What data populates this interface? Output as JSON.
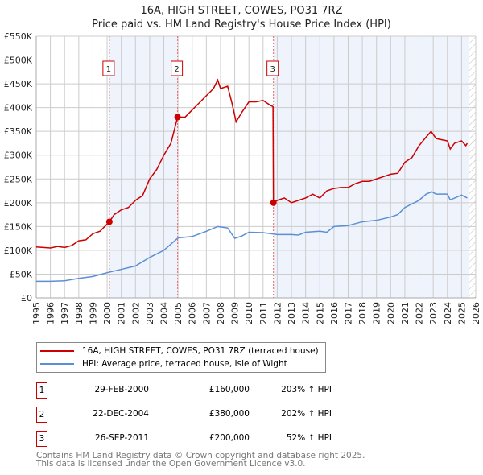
{
  "chart_data": {
    "type": "line",
    "title": "16A, HIGH STREET, COWES, PO31 7RZ",
    "subtitle": "Price paid vs. HM Land Registry's House Price Index (HPI)",
    "xlim": [
      1995,
      2026
    ],
    "ylim": [
      0,
      550000
    ],
    "y_ticks": [
      0,
      50000,
      100000,
      150000,
      200000,
      250000,
      300000,
      350000,
      400000,
      450000,
      500000,
      550000
    ],
    "y_tick_labels": [
      "£0",
      "£50K",
      "£100K",
      "£150K",
      "£200K",
      "£250K",
      "£300K",
      "£350K",
      "£400K",
      "£450K",
      "£500K",
      "£550K"
    ],
    "x_ticks": [
      "1995",
      "1996",
      "1997",
      "1998",
      "1999",
      "2000",
      "2001",
      "2002",
      "2003",
      "2004",
      "2005",
      "2006",
      "2007",
      "2008",
      "2009",
      "2010",
      "2011",
      "2012",
      "2013",
      "2014",
      "2015",
      "2016",
      "2017",
      "2018",
      "2019",
      "2020",
      "2021",
      "2022",
      "2023",
      "2024",
      "2025",
      "2026"
    ],
    "grid": true,
    "data_end": 2025.5,
    "series": [
      {
        "name": "16A, HIGH STREET, COWES, PO31 7RZ (terraced house)",
        "color": "#cc0000",
        "x": [
          1995,
          1996,
          1996.5,
          1997,
          1997.5,
          1998,
          1998.5,
          1999,
          1999.5,
          2000.16,
          2000.5,
          2001,
          2001.5,
          2002,
          2002.5,
          2003,
          2003.5,
          2004,
          2004.5,
          2004.97,
          2005.5,
          2006,
          2006.5,
          2007,
          2007.5,
          2007.8,
          2008,
          2008.5,
          2008.8,
          2009.1,
          2009.5,
          2010,
          2010.5,
          2011,
          2011.5,
          2011.7,
          2011.73,
          2012,
          2012.5,
          2013,
          2013.5,
          2014,
          2014.5,
          2015,
          2015.5,
          2016,
          2016.5,
          2017,
          2017.5,
          2018,
          2018.5,
          2019,
          2019.5,
          2020,
          2020.5,
          2021,
          2021.5,
          2022,
          2022.5,
          2022.85,
          2023.2,
          2023.5,
          2024,
          2024.2,
          2024.5,
          2025,
          2025.3,
          2025.4
        ],
        "y": [
          107000,
          105000,
          108000,
          106000,
          110000,
          120000,
          122000,
          135000,
          140000,
          160000,
          175000,
          185000,
          190000,
          205000,
          215000,
          250000,
          270000,
          300000,
          325000,
          380000,
          380000,
          395000,
          410000,
          425000,
          440000,
          458000,
          440000,
          445000,
          410000,
          370000,
          390000,
          412000,
          412000,
          415000,
          405000,
          402000,
          200000,
          205000,
          210000,
          200000,
          205000,
          210000,
          218000,
          210000,
          225000,
          230000,
          232000,
          232000,
          240000,
          245000,
          245000,
          250000,
          255000,
          260000,
          262000,
          285000,
          295000,
          320000,
          338000,
          350000,
          335000,
          333000,
          330000,
          313000,
          325000,
          330000,
          320000,
          325000
        ]
      },
      {
        "name": "HPI: Average price, terraced house, Isle of Wight",
        "color": "#5b8fd4",
        "x": [
          1995,
          1996,
          1997,
          1998,
          1999,
          2000,
          2001,
          2002,
          2003,
          2004,
          2005,
          2006,
          2007,
          2007.8,
          2008.5,
          2009,
          2009.5,
          2010,
          2011,
          2012,
          2013,
          2013.5,
          2014,
          2015,
          2015.5,
          2016,
          2017,
          2018,
          2019,
          2020,
          2020.5,
          2021,
          2022,
          2022.5,
          2022.9,
          2023.2,
          2024,
          2024.2,
          2025,
          2025.4
        ],
        "y": [
          35000,
          35000,
          36000,
          41000,
          45000,
          53000,
          60000,
          67000,
          85000,
          100000,
          126000,
          129000,
          140000,
          150000,
          147000,
          125000,
          130000,
          138000,
          137000,
          133000,
          133000,
          132000,
          138000,
          140000,
          138000,
          150000,
          152000,
          160000,
          163000,
          170000,
          175000,
          190000,
          205000,
          218000,
          223000,
          218000,
          218000,
          206000,
          216000,
          210000
        ]
      }
    ],
    "sales": [
      {
        "n": "1",
        "x": 2000.16,
        "y": 160000,
        "date": "29-FEB-2000",
        "price": "£160,000",
        "hpi": "203% ↑ HPI"
      },
      {
        "n": "2",
        "x": 2004.97,
        "y": 380000,
        "date": "22-DEC-2004",
        "price": "£380,000",
        "hpi": "202% ↑ HPI"
      },
      {
        "n": "3",
        "x": 2011.73,
        "y": 200000,
        "date": "26-SEP-2011",
        "price": "£200,000",
        "hpi": "52% ↑ HPI"
      }
    ]
  },
  "footer": {
    "line1": "Contains HM Land Registry data © Crown copyright and database right 2025.",
    "line2": "This data is licensed under the Open Government Licence v3.0."
  }
}
